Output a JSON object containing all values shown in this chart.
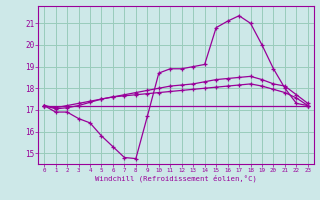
{
  "xlabel": "Windchill (Refroidissement éolien,°C)",
  "xlim": [
    -0.5,
    23.5
  ],
  "ylim": [
    14.5,
    21.8
  ],
  "yticks": [
    15,
    16,
    17,
    18,
    19,
    20,
    21
  ],
  "xticks": [
    0,
    1,
    2,
    3,
    4,
    5,
    6,
    7,
    8,
    9,
    10,
    11,
    12,
    13,
    14,
    15,
    16,
    17,
    18,
    19,
    20,
    21,
    22,
    23
  ],
  "bg_color": "#cde8e8",
  "line_color": "#990099",
  "grid_color": "#99ccbb",
  "series": [
    {
      "x": [
        0,
        1,
        2,
        3,
        4,
        5,
        6,
        7,
        8,
        9,
        10,
        11,
        12,
        13,
        14,
        15,
        16,
        17,
        18,
        19,
        20,
        21,
        22,
        23
      ],
      "y": [
        17.2,
        16.9,
        16.9,
        16.6,
        16.4,
        15.8,
        15.3,
        14.8,
        14.75,
        16.7,
        18.7,
        18.9,
        18.9,
        19.0,
        19.1,
        20.8,
        21.1,
        21.35,
        21.0,
        20.0,
        18.9,
        18.0,
        17.3,
        17.2
      ]
    },
    {
      "x": [
        0,
        1,
        2,
        3,
        4,
        5,
        6,
        7,
        8,
        9,
        10,
        11,
        12,
        13,
        14,
        15,
        16,
        17,
        18,
        19,
        20,
        21,
        22,
        23
      ],
      "y": [
        17.2,
        17.05,
        17.1,
        17.2,
        17.35,
        17.5,
        17.6,
        17.7,
        17.8,
        17.9,
        18.0,
        18.1,
        18.15,
        18.2,
        18.3,
        18.4,
        18.45,
        18.5,
        18.55,
        18.4,
        18.2,
        18.1,
        17.7,
        17.3
      ]
    },
    {
      "x": [
        0,
        1,
        2,
        3,
        4,
        5,
        6,
        7,
        8,
        9,
        10,
        11,
        12,
        13,
        14,
        15,
        16,
        17,
        18,
        19,
        20,
        21,
        22,
        23
      ],
      "y": [
        17.2,
        17.1,
        17.2,
        17.3,
        17.4,
        17.5,
        17.6,
        17.65,
        17.7,
        17.75,
        17.8,
        17.85,
        17.9,
        17.95,
        18.0,
        18.05,
        18.1,
        18.15,
        18.2,
        18.1,
        17.95,
        17.8,
        17.55,
        17.2
      ]
    },
    {
      "x": [
        0,
        23
      ],
      "y": [
        17.2,
        17.2
      ]
    }
  ]
}
